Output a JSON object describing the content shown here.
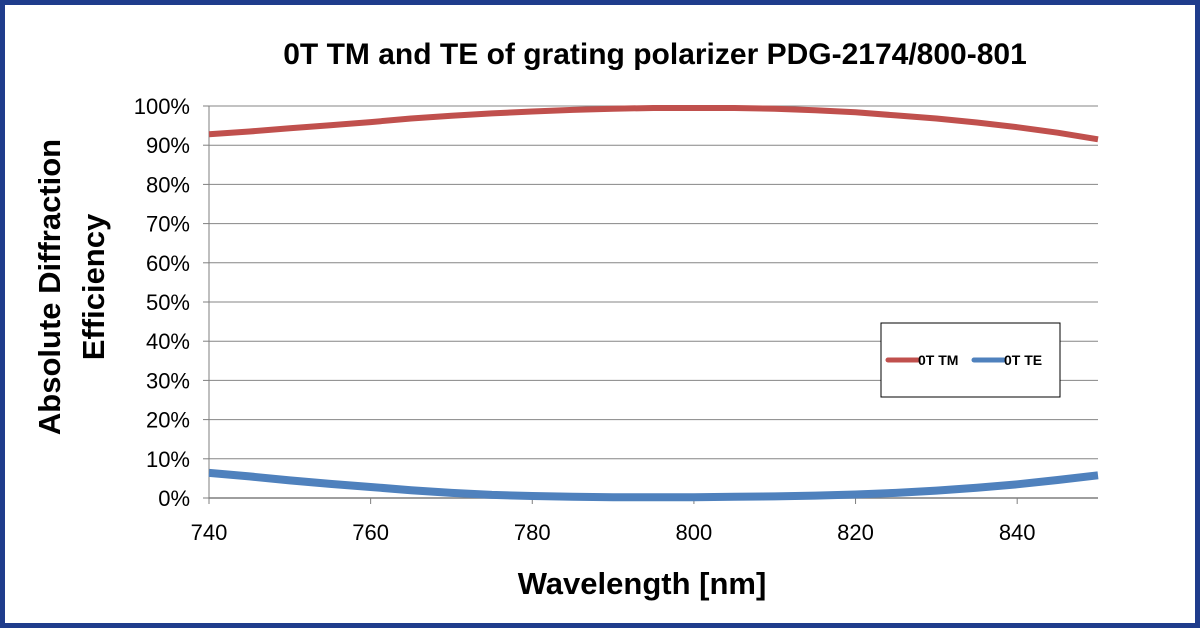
{
  "chart_data": {
    "type": "line",
    "title": "0T TM and TE of grating polarizer PDG-2174/800-801",
    "xlabel": "Wavelength  [nm]",
    "ylabel_lines": [
      "Absolute  Diffraction",
      "Efficiency"
    ],
    "xlim": [
      740,
      850
    ],
    "ylim": [
      0,
      100
    ],
    "x_ticks": [
      740,
      760,
      780,
      800,
      820,
      840
    ],
    "x_tick_labels": [
      "740",
      "760",
      "780",
      "800",
      "820",
      "840"
    ],
    "y_ticks": [
      0,
      10,
      20,
      30,
      40,
      50,
      60,
      70,
      80,
      90,
      100
    ],
    "y_tick_labels": [
      "0%",
      "10%",
      "20%",
      "30%",
      "40%",
      "50%",
      "60%",
      "70%",
      "80%",
      "90%",
      "100%"
    ],
    "grid": true,
    "legend_position": "middle-right",
    "series": [
      {
        "name": "0T TM",
        "color": "#c0504d",
        "x": [
          740,
          745,
          750,
          755,
          760,
          765,
          770,
          775,
          780,
          785,
          790,
          795,
          800,
          805,
          810,
          815,
          820,
          825,
          830,
          835,
          840,
          845,
          850
        ],
        "y": [
          92.8,
          93.5,
          94.3,
          95.1,
          95.9,
          96.8,
          97.5,
          98.1,
          98.6,
          99.0,
          99.3,
          99.5,
          99.5,
          99.5,
          99.3,
          98.9,
          98.4,
          97.6,
          96.8,
          95.8,
          94.6,
          93.2,
          91.5
        ]
      },
      {
        "name": "0T TE",
        "color": "#4f81bd",
        "x": [
          740,
          745,
          750,
          755,
          760,
          765,
          770,
          775,
          780,
          785,
          790,
          795,
          800,
          805,
          810,
          815,
          820,
          825,
          830,
          835,
          840,
          845,
          850
        ],
        "y": [
          6.4,
          5.5,
          4.5,
          3.6,
          2.8,
          2.0,
          1.3,
          0.8,
          0.5,
          0.3,
          0.2,
          0.2,
          0.2,
          0.3,
          0.4,
          0.6,
          0.9,
          1.3,
          1.9,
          2.6,
          3.5,
          4.6,
          5.8
        ]
      }
    ]
  }
}
